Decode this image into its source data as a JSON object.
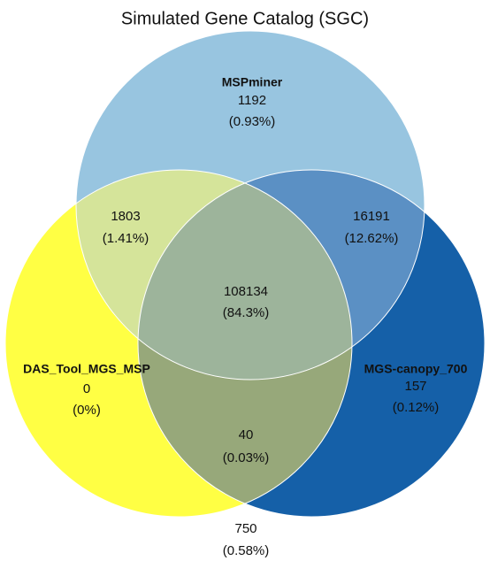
{
  "title": "Simulated Gene Catalog (SGC)",
  "sets": [
    {
      "label": "MSPminer",
      "count": 1192,
      "percent": "(0.93%)"
    },
    {
      "label": "DAS_Tool_MGS_MSP",
      "count": 0,
      "percent": "(0%)"
    },
    {
      "label": "MGS-canopy_700",
      "count": 157,
      "percent": "(0.12%)"
    }
  ],
  "overlaps": [
    {
      "count": 1803,
      "percent": "(1.41%)"
    },
    {
      "count": 16191,
      "percent": "(12.62%)"
    },
    {
      "count": 40,
      "percent": "(0.03%)"
    },
    {
      "count": 108134,
      "percent": "(84.3%)"
    }
  ],
  "outside": {
    "count": 750,
    "percent": "(0.58%)"
  }
}
